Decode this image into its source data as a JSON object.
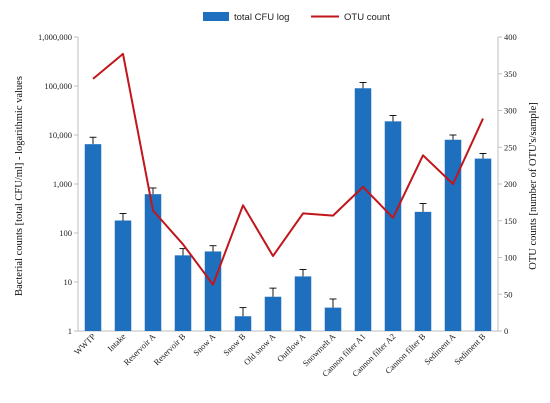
{
  "chart_data": {
    "type": "bar+line",
    "categories": [
      "WWTP",
      "Intake",
      "Reservoir A",
      "Reservoir B",
      "Snow A",
      "Snow B",
      "Old snow A",
      "Outflow A",
      "Snowmelt A",
      "Cannon filter A1",
      "Cannon filter A2",
      "Cannon filter B",
      "Sediment A",
      "Sediment B"
    ],
    "series": [
      {
        "name": "total CFU log",
        "type": "bar",
        "axis": "left",
        "color": "#1f6fbf",
        "values": [
          6500,
          180,
          620,
          35,
          42,
          2,
          5,
          13,
          3,
          90000,
          19000,
          270,
          8000,
          3300
        ],
        "error_upper": [
          9000,
          250,
          830,
          48,
          55,
          3,
          7.5,
          18,
          4.5,
          118000,
          25000,
          400,
          10000,
          4200
        ]
      },
      {
        "name": "OTU count",
        "type": "line",
        "axis": "right",
        "color": "#c0161c",
        "values": [
          343,
          377,
          164,
          118,
          63,
          171,
          102,
          160,
          157,
          196,
          154,
          239,
          200,
          289
        ]
      }
    ],
    "y_left": {
      "label": "Bacterial counts [total CFU/ml] - logarithmic values",
      "scale": "log",
      "range": [
        1,
        1000000
      ],
      "ticks": [
        "1",
        "10",
        "100",
        "1,000",
        "10,000",
        "100,000",
        "1,000,000"
      ]
    },
    "y_right": {
      "label": "OTU counts [number of OTU's/sample]",
      "range": [
        0,
        400
      ],
      "ticks": [
        "0",
        "50",
        "100",
        "150",
        "200",
        "250",
        "300",
        "350",
        "400"
      ]
    },
    "grid": false,
    "legend_position": "top-center"
  }
}
